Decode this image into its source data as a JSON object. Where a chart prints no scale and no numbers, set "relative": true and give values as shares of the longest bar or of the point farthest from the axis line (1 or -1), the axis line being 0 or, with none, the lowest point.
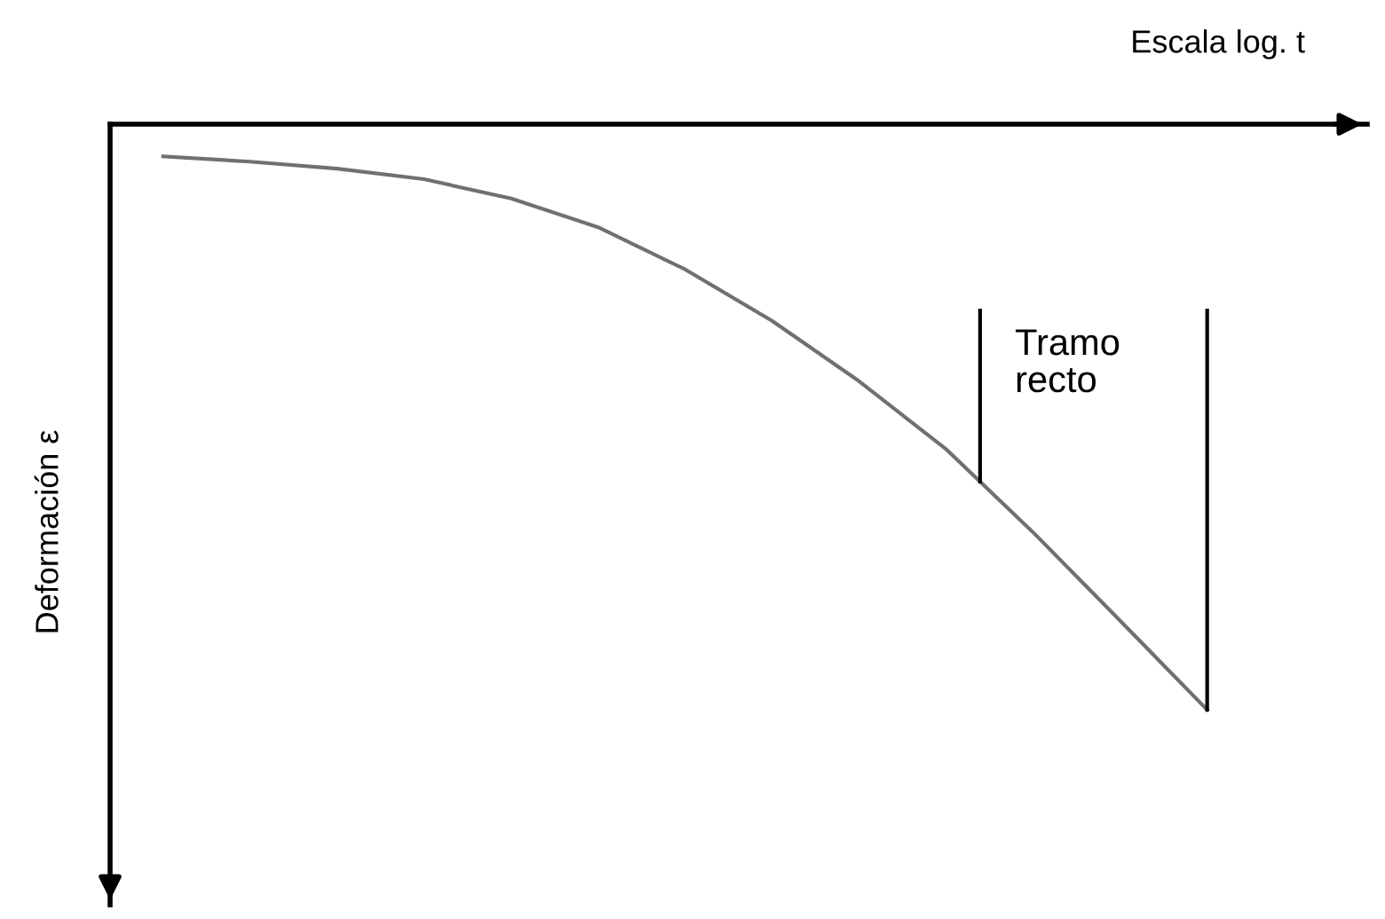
{
  "chart_data": {
    "type": "line",
    "relative": true,
    "xlabel": "Escala log. t",
    "ylabel": "Deformación ε",
    "categories": [
      null,
      null,
      null,
      null,
      null,
      null,
      null,
      null,
      null,
      null,
      null,
      null,
      null
    ],
    "series": [
      {
        "color": "#707070",
        "values": [
          -0.055,
          -0.064,
          -0.076,
          -0.094,
          -0.127,
          -0.176,
          -0.248,
          -0.336,
          -0.439,
          -0.555,
          -0.697,
          -0.848,
          -1
        ]
      }
    ],
    "annotations": [
      "Tramo recto"
    ],
    "marker": "none",
    "line_style": "solid"
  }
}
